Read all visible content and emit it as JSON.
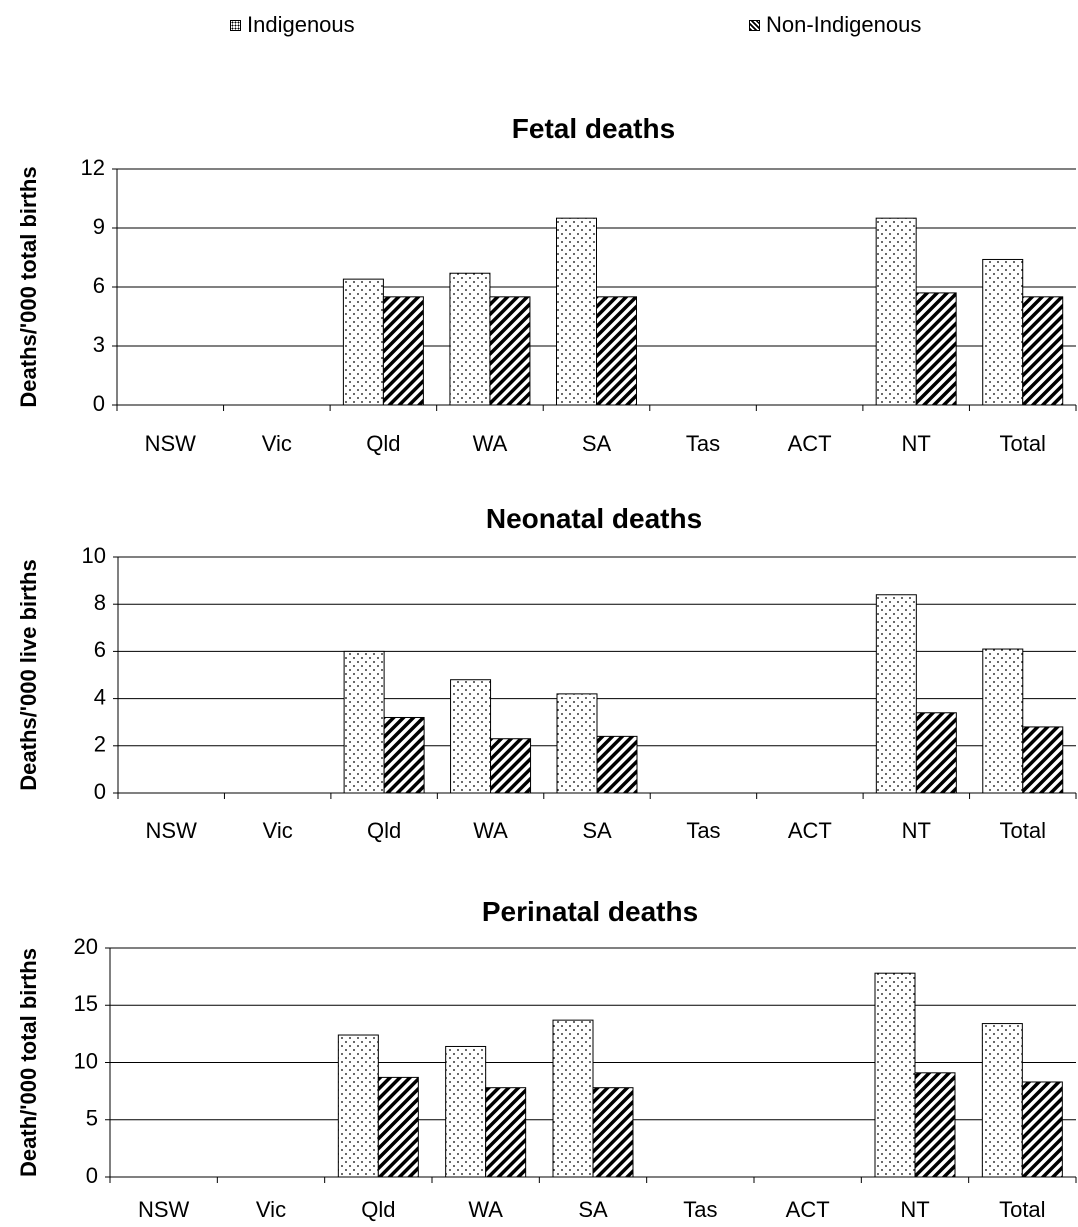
{
  "legend": {
    "items": [
      {
        "label": "Indigenous",
        "pattern": "dots"
      },
      {
        "label": "Non-Indigenous",
        "pattern": "hatch"
      }
    ]
  },
  "colors": {
    "bar_stroke": "#000000",
    "gridline": "#000000",
    "background": "#ffffff"
  },
  "chart_data": [
    {
      "type": "bar",
      "title": "Fetal deaths",
      "ylabel": "Deaths/'000 total births",
      "ylim": [
        0,
        12
      ],
      "yticks": [
        0,
        3,
        6,
        9,
        12
      ],
      "categories": [
        "NSW",
        "Vic",
        "Qld",
        "WA",
        "SA",
        "Tas",
        "ACT",
        "NT",
        "Total"
      ],
      "series": [
        {
          "name": "Indigenous",
          "values": [
            null,
            null,
            6.4,
            6.7,
            9.5,
            null,
            null,
            9.5,
            7.4
          ]
        },
        {
          "name": "Non-Indigenous",
          "values": [
            null,
            null,
            5.5,
            5.5,
            5.5,
            null,
            null,
            5.7,
            5.5
          ]
        }
      ],
      "grid": true
    },
    {
      "type": "bar",
      "title": "Neonatal deaths",
      "ylabel": "Deaths/'000 live births",
      "ylim": [
        0,
        10
      ],
      "yticks": [
        0,
        2,
        4,
        6,
        8,
        10
      ],
      "categories": [
        "NSW",
        "Vic",
        "Qld",
        "WA",
        "SA",
        "Tas",
        "ACT",
        "NT",
        "Total"
      ],
      "series": [
        {
          "name": "Indigenous",
          "values": [
            null,
            null,
            6.0,
            4.8,
            4.2,
            null,
            null,
            8.4,
            6.1
          ]
        },
        {
          "name": "Non-Indigenous",
          "values": [
            null,
            null,
            3.2,
            2.3,
            2.4,
            null,
            null,
            3.4,
            2.8
          ]
        }
      ],
      "grid": true
    },
    {
      "type": "bar",
      "title": "Perinatal deaths",
      "ylabel": "Death/'000 total births",
      "ylim": [
        0,
        20
      ],
      "yticks": [
        0,
        5,
        10,
        15,
        20
      ],
      "categories": [
        "NSW",
        "Vic",
        "Qld",
        "WA",
        "SA",
        "Tas",
        "ACT",
        "NT",
        "Total"
      ],
      "series": [
        {
          "name": "Indigenous",
          "values": [
            null,
            null,
            12.4,
            11.4,
            13.7,
            null,
            null,
            17.8,
            13.4
          ]
        },
        {
          "name": "Non-Indigenous",
          "values": [
            null,
            null,
            8.7,
            7.8,
            7.8,
            null,
            null,
            9.1,
            8.3
          ]
        }
      ],
      "grid": true
    }
  ]
}
